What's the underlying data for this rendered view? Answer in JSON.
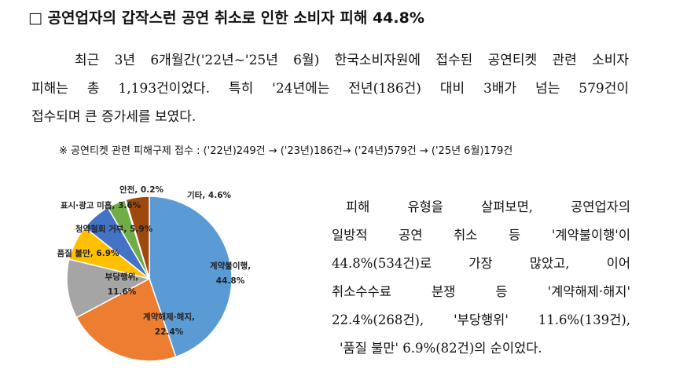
{
  "header": {
    "title": "□ 공연업자의 갑작스런 공연 취소로 인한 소비자 피해 44.8%"
  },
  "paragraph": {
    "lines": [
      "최근 3년 6개월간('22년~'25년 6월) 한국소비자원에 접수된 공연티켓 관련 소비자",
      "피해는 총 1,193건이었다. 특히 '24년에는 전년(186건) 대비 3배가 넘는 579건이",
      "접수되며 큰 증가세를 보였다."
    ]
  },
  "note": {
    "text": "※ 공연티켓 관련 피해구제 접수 : ('22년)249건 → ('23년)186건→ ('24년)579건 → ('25년 6월)179건"
  },
  "chart_data": {
    "type": "pie",
    "categories": [
      "계약불이행,",
      "계약해제·해지,",
      "부당행위,",
      "품질 불만,",
      "청약철회 거부,",
      "표시·광고 미흡,",
      "안전,",
      "기타,"
    ],
    "values": [
      44.8,
      22.4,
      11.6,
      6.9,
      5.9,
      3.6,
      0.2,
      4.6
    ],
    "value_labels": [
      "44.8%",
      "22.4%",
      "11.6%",
      "6.9%",
      "5.9%",
      "3.6%",
      "0.2%",
      "4.6%"
    ],
    "colors": [
      "#5b9bd5",
      "#ed7d31",
      "#a5a5a5",
      "#ffc000",
      "#4472c4",
      "#70ad47",
      "#264478",
      "#9e480e"
    ]
  },
  "side_text": {
    "lines": [
      "피해 유형을 살펴보면, 공연업자의",
      "일방적 공연 취소 등 '계약불이행'이",
      "44.8%(534건)로 가장 많았고, 이어",
      "취소수수료 분쟁 등 '계약해제·해지'",
      "22.4%(268건), '부당행위' 11.6%(139건),",
      "'품질 불만' 6.9%(82건)의 순이었다."
    ]
  }
}
